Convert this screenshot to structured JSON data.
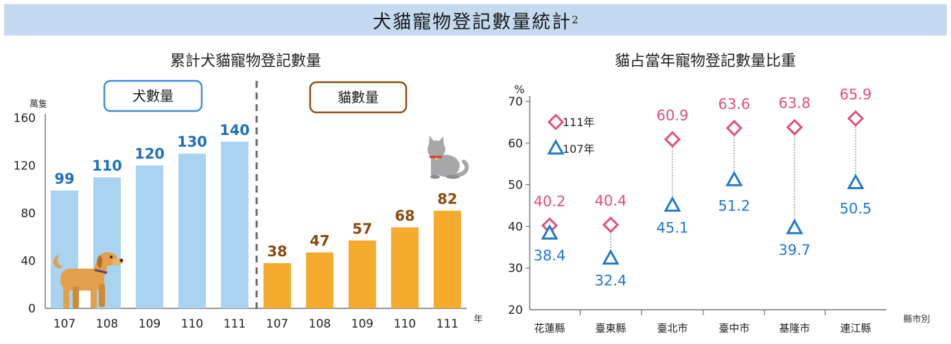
{
  "title": {
    "text": "犬貓寵物登記數量統計",
    "superscript": "2"
  },
  "chart_data": [
    {
      "type": "bar",
      "title": "累計犬貓寵物登記數量",
      "unit_label": "萬隻",
      "xlabel": "年",
      "ylim": [
        0,
        160
      ],
      "yticks": [
        "0",
        "40",
        "80",
        "120",
        "160"
      ],
      "groups": [
        {
          "label": "犬數量",
          "color": "#a9d3f0",
          "value_color": "#1f6fbf",
          "border_color": "#3a8fd8",
          "categories": [
            "107",
            "108",
            "109",
            "110",
            "111"
          ],
          "values": [
            99,
            110,
            120,
            130,
            140
          ]
        },
        {
          "label": "貓數量",
          "color": "#f5ab2e",
          "value_color": "#8a4b12",
          "border_color": "#8a4b12",
          "categories": [
            "107",
            "108",
            "109",
            "110",
            "111"
          ],
          "values": [
            38,
            47,
            57,
            68,
            82
          ]
        }
      ]
    },
    {
      "type": "scatter",
      "title": "貓占當年寵物登記數量比重",
      "ylabel": "%",
      "xlabel": "縣市別",
      "ylim": [
        20,
        70
      ],
      "yticks": [
        "20",
        "30",
        "40",
        "50",
        "60",
        "70"
      ],
      "categories": [
        "花蓮縣",
        "臺東縣",
        "臺北市",
        "臺中市",
        "基隆市",
        "連江縣"
      ],
      "series": [
        {
          "name": "111年",
          "marker": "diamond",
          "color": "#e24c7c",
          "values": [
            40.2,
            40.4,
            60.9,
            63.6,
            63.8,
            65.9
          ]
        },
        {
          "name": "107年",
          "marker": "triangle",
          "color": "#1f78c8",
          "values": [
            38.4,
            32.4,
            45.1,
            51.2,
            39.7,
            50.5
          ]
        }
      ]
    }
  ]
}
